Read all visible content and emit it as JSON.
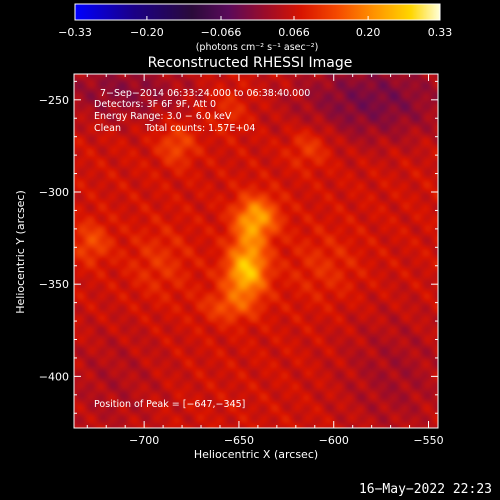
{
  "chart_data": {
    "type": "heatmap",
    "title": "Reconstructed RHESSI Image",
    "xlabel": "Heliocentric X (arcsec)",
    "ylabel": "Heliocentric Y (arcsec)",
    "xlim": [
      -737,
      -545
    ],
    "ylim": [
      -428,
      -236
    ],
    "x_ticks": [
      {
        "value": -700,
        "label": "−700"
      },
      {
        "value": -650,
        "label": "−650"
      },
      {
        "value": -600,
        "label": "−600"
      },
      {
        "value": -550,
        "label": "−550"
      }
    ],
    "y_ticks": [
      {
        "value": -250,
        "label": "−250"
      },
      {
        "value": -300,
        "label": "−300"
      },
      {
        "value": -350,
        "label": "−350"
      },
      {
        "value": -400,
        "label": "−400"
      }
    ],
    "colorbar": {
      "range": [
        -0.33,
        0.33
      ],
      "unit_label": "(photons cm⁻² s⁻¹ asec⁻²)",
      "ticks": [
        {
          "value": -0.33,
          "label": "−0.33"
        },
        {
          "value": -0.2,
          "label": "−0.20"
        },
        {
          "value": -0.066,
          "label": "−0.066"
        },
        {
          "value": 0.066,
          "label": "0.066"
        },
        {
          "value": 0.2,
          "label": "0.20"
        },
        {
          "value": 0.33,
          "label": "0.33"
        }
      ]
    },
    "annotations": {
      "time_range": "7−Sep−2014 06:33:24.000 to 06:38:40.000",
      "detectors": "Detectors: 3F 6F 9F, Att 0",
      "energy_range": "Energy Range: 3.0 − 6.0 keV",
      "method": "Clean",
      "total_counts": "Total counts: 1.57E+04",
      "peak_position": "Position of Peak = [−647,−345]"
    },
    "peak": [
      -647,
      -345
    ],
    "emission_blobs": [
      {
        "x": -647,
        "y": -345,
        "sigma_x": 8,
        "sigma_y": 9,
        "amp": 0.13
      },
      {
        "x": -640,
        "y": -313,
        "sigma_x": 8,
        "sigma_y": 8,
        "amp": 0.12
      },
      {
        "x": -645,
        "y": -330,
        "sigma_x": 7,
        "sigma_y": 14,
        "amp": 0.1
      },
      {
        "x": -655,
        "y": -362,
        "sigma_x": 10,
        "sigma_y": 6,
        "amp": 0.07
      },
      {
        "x": -683,
        "y": -274,
        "sigma_x": 7,
        "sigma_y": 8,
        "amp": 0.07
      },
      {
        "x": -613,
        "y": -275,
        "sigma_x": 8,
        "sigma_y": 8,
        "amp": 0.06
      },
      {
        "x": -728,
        "y": -327,
        "sigma_x": 7,
        "sigma_y": 8,
        "amp": 0.07
      },
      {
        "x": -605,
        "y": -340,
        "sigma_x": 14,
        "sigma_y": 14,
        "amp": 0.035
      },
      {
        "x": -692,
        "y": -338,
        "sigma_x": 12,
        "sigma_y": 14,
        "amp": 0.04
      },
      {
        "x": -655,
        "y": -255,
        "sigma_x": 8,
        "sigma_y": 9,
        "amp": 0.04
      }
    ],
    "background_level": 0.07,
    "dark_regions": [
      {
        "x": -580,
        "y": -250,
        "sigma_x": 30,
        "sigma_y": 16,
        "amp": -0.09
      },
      {
        "x": -712,
        "y": -245,
        "sigma_x": 26,
        "sigma_y": 12,
        "amp": -0.07
      },
      {
        "x": -568,
        "y": -400,
        "sigma_x": 22,
        "sigma_y": 26,
        "amp": -0.045
      },
      {
        "x": -718,
        "y": -405,
        "sigma_x": 20,
        "sigma_y": 25,
        "amp": -0.035
      }
    ]
  },
  "footer": {
    "timestamp": "16−May−2022 22:23"
  }
}
